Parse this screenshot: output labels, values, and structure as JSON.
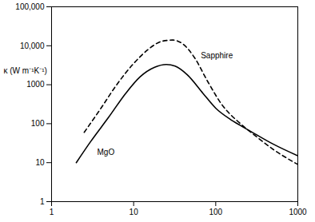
{
  "chart_data": {
    "type": "line",
    "y_label": "κ (W m⁻¹K⁻¹)",
    "log": true,
    "grid": false,
    "xlim": [
      1,
      1000
    ],
    "xticks": [
      1,
      10,
      100,
      1000
    ],
    "ylim": [
      1,
      100000
    ],
    "yticks": [
      1,
      10,
      100,
      1000,
      {
        "value": 10000,
        "label": "10,000"
      },
      {
        "value": 100000,
        "label": "100,000"
      }
    ],
    "series": [
      {
        "name": "MgO",
        "color": "#000000",
        "line_style": "solid",
        "x": [
          2,
          3,
          5,
          8,
          12,
          18,
          25,
          32,
          45,
          70,
          100,
          150,
          200,
          300,
          500,
          1000
        ],
        "values": [
          10,
          35,
          150,
          600,
          1600,
          2800,
          3300,
          3000,
          1800,
          600,
          250,
          130,
          90,
          55,
          30,
          15
        ]
      },
      {
        "name": "Sapphire",
        "color": "#000000",
        "line_style": "dashed",
        "x": [
          2.5,
          4,
          6,
          10,
          15,
          22,
          30,
          40,
          55,
          80,
          120,
          200,
          300,
          500,
          1000
        ],
        "values": [
          60,
          250,
          900,
          3500,
          8000,
          13000,
          14000,
          11000,
          5000,
          1200,
          300,
          100,
          50,
          22,
          9
        ]
      }
    ]
  }
}
